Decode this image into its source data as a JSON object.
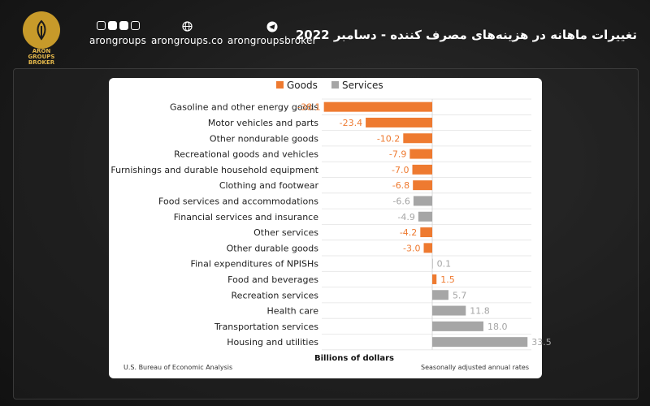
{
  "header": {
    "logo_lines": [
      "ARON",
      "GROUPS",
      "BROKER"
    ],
    "links": [
      {
        "label": "arongroups",
        "icon": "social-icons"
      },
      {
        "label": "arongroups.co",
        "icon": "globe-icon"
      },
      {
        "label": "arongroupsbroker",
        "icon": "telegram-icon"
      }
    ],
    "title": "تغییرات ماهانه در هزینه‌های مصرف کننده - دسامبر 2022"
  },
  "footer": {
    "source": "U.S. Bureau of Economic Analysis",
    "note": "Seasonally adjusted annual rates"
  },
  "chart_data": {
    "type": "bar",
    "orientation": "horizontal",
    "xlabel": "Billions of dollars",
    "legend": {
      "placement": "top-center",
      "entries": [
        "Goods",
        "Services"
      ]
    },
    "colors": {
      "Goods": "#ee7a30",
      "Services": "#a6a6a6"
    },
    "grid": true,
    "xlim": [
      -40,
      36
    ],
    "bars": [
      {
        "label": "Gasoline and other energy goods",
        "value": -38.1,
        "value_label": "-38.1",
        "group": "Goods"
      },
      {
        "label": "Motor vehicles and parts",
        "value": -23.4,
        "value_label": "-23.4",
        "group": "Goods"
      },
      {
        "label": "Other nondurable goods",
        "value": -10.2,
        "value_label": "-10.2",
        "group": "Goods"
      },
      {
        "label": "Recreational goods and vehicles",
        "value": -7.9,
        "value_label": "-7.9",
        "group": "Goods"
      },
      {
        "label": "Furnishings and durable household equipment",
        "value": -7.0,
        "value_label": "-7.0",
        "group": "Goods"
      },
      {
        "label": "Clothing and footwear",
        "value": -6.8,
        "value_label": "-6.8",
        "group": "Goods"
      },
      {
        "label": "Food services and accommodations",
        "value": -6.6,
        "value_label": "-6.6",
        "group": "Services"
      },
      {
        "label": "Financial services and insurance",
        "value": -4.9,
        "value_label": "-4.9",
        "group": "Services"
      },
      {
        "label": "Other services",
        "value": -4.2,
        "value_label": "-4.2",
        "group": "Goods"
      },
      {
        "label": "Other durable goods",
        "value": -3.0,
        "value_label": "-3.0",
        "group": "Goods"
      },
      {
        "label": "Final expenditures of NPISHs",
        "value": 0.1,
        "value_label": "0.1",
        "group": "Services"
      },
      {
        "label": "Food and beverages",
        "value": 1.5,
        "value_label": "1.5",
        "group": "Goods"
      },
      {
        "label": "Recreation services",
        "value": 5.7,
        "value_label": "5.7",
        "group": "Services"
      },
      {
        "label": "Health care",
        "value": 11.8,
        "value_label": "11.8",
        "group": "Services"
      },
      {
        "label": "Transportation services",
        "value": 18.0,
        "value_label": "18.0",
        "group": "Services"
      },
      {
        "label": "Housing and utilities",
        "value": 33.5,
        "value_label": "33.5",
        "group": "Services"
      }
    ]
  }
}
